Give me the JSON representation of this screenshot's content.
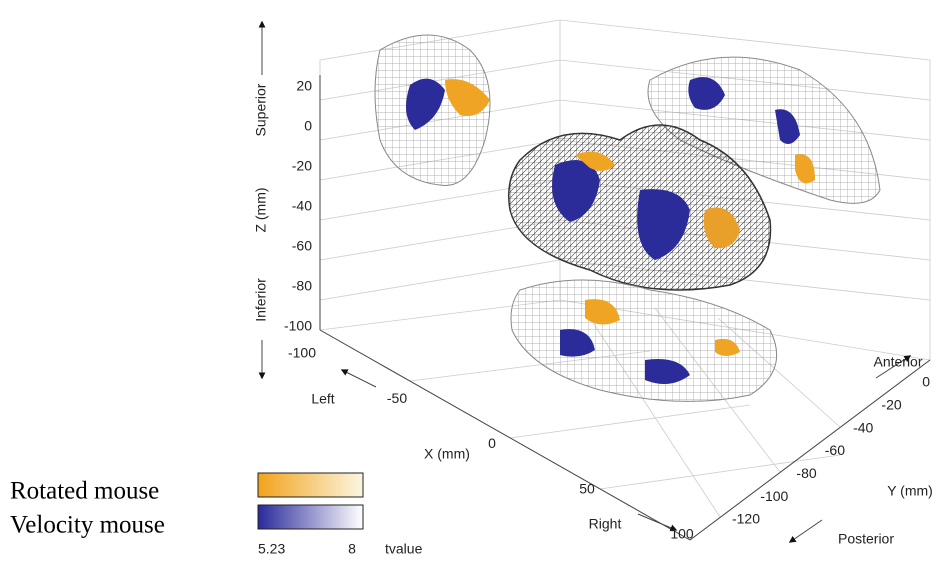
{
  "figure": {
    "z_axis": {
      "label": "Z (mm)",
      "ticks": [
        20,
        0,
        -20,
        -40,
        -60,
        -80,
        -100
      ],
      "top": "Superior",
      "bottom": "Inferior"
    },
    "x_axis": {
      "label": "X (mm)",
      "ticks": [
        -100,
        -50,
        0,
        50,
        100
      ],
      "start": "Left",
      "end": "Right"
    },
    "y_axis": {
      "label": "Y (mm)",
      "ticks": [
        0,
        -20,
        -40,
        -60,
        -80,
        -100,
        -120
      ],
      "start": "Anterior",
      "end": "Posterior"
    },
    "legend": {
      "entries": [
        "Rotated mouse",
        "Velocity mouse"
      ],
      "min": 5.23,
      "max": 8,
      "unit": "tvalue"
    }
  }
}
